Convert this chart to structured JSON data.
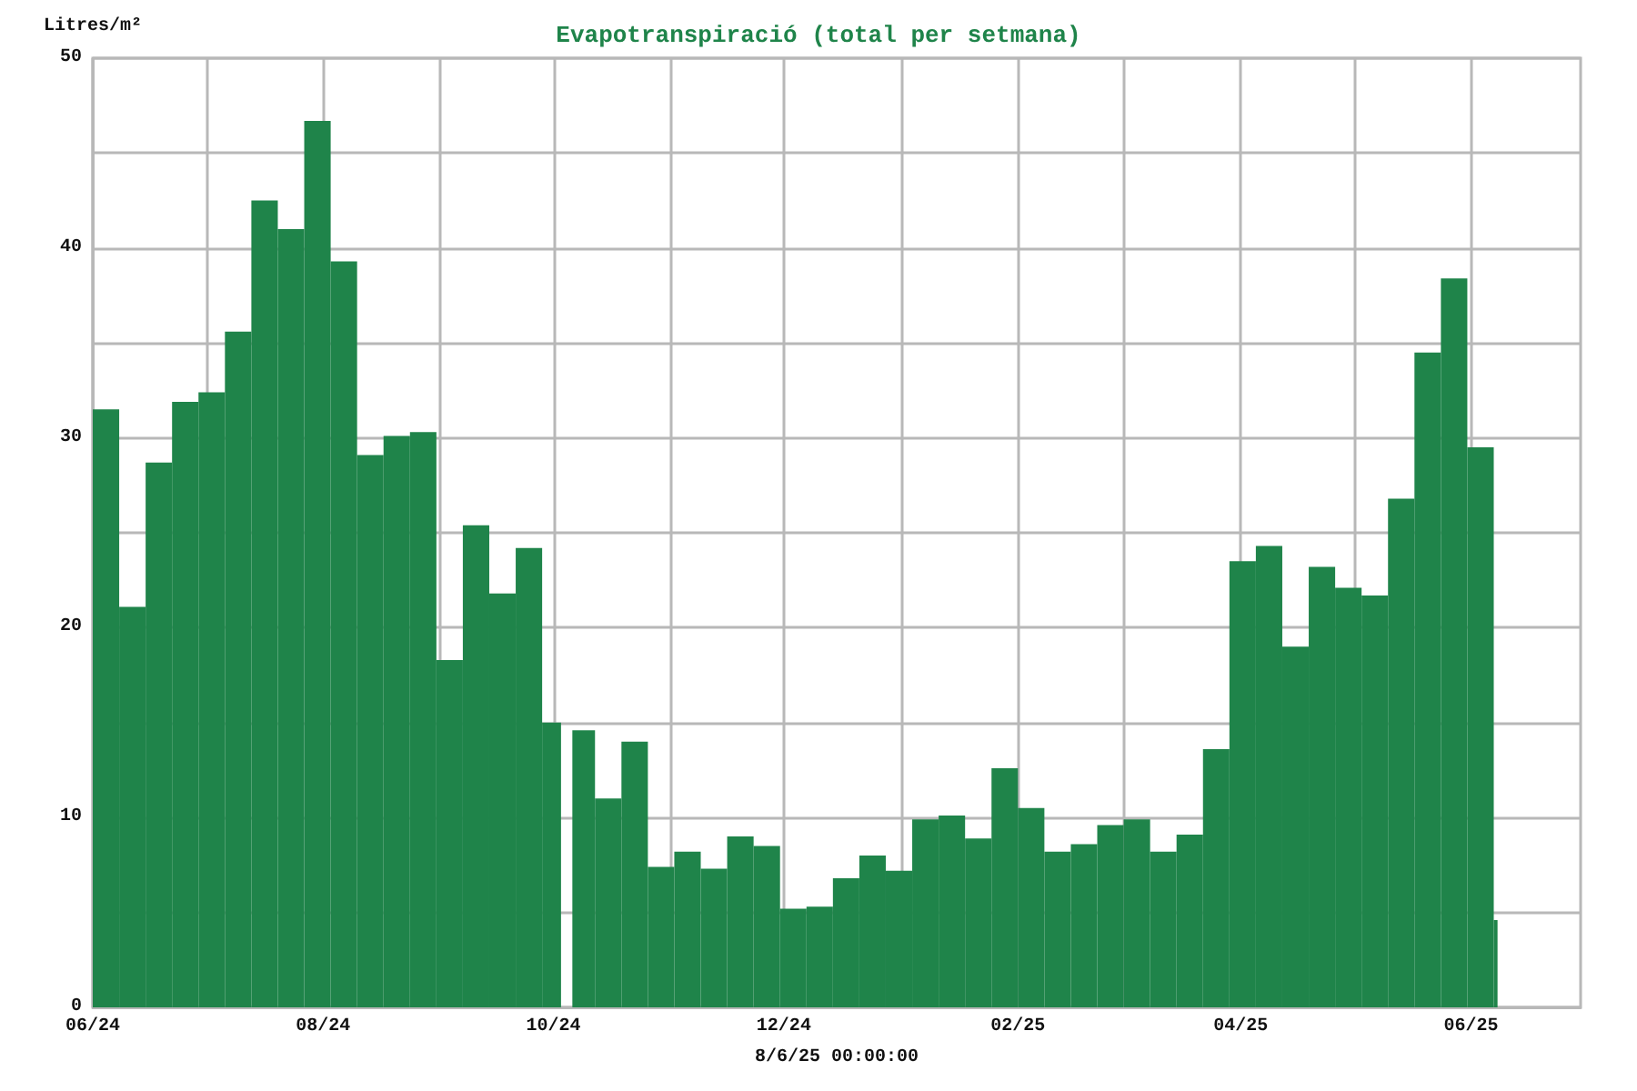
{
  "chart_data": {
    "type": "histogram",
    "title": "Evapotranspiració (total per setmana)",
    "ylabel": "Litres/m²",
    "xlabel": "8/6/25 00:00:00",
    "color": "#1f844a",
    "grid": true,
    "bins": [
      "2024-06-01",
      "2024-06-08",
      "2024-06-15",
      "2024-06-22",
      "2024-06-29",
      "2024-07-06",
      "2024-07-13",
      "2024-07-20",
      "2024-07-27",
      "2024-08-03",
      "2024-08-10",
      "2024-08-17",
      "2024-08-24",
      "2024-08-31",
      "2024-09-07",
      "2024-09-14",
      "2024-09-21",
      "2024-09-28",
      "2024-10-03",
      "2024-10-06",
      "2024-10-12",
      "2024-10-19",
      "2024-10-26",
      "2024-11-02",
      "2024-11-09",
      "2024-11-16",
      "2024-11-23",
      "2024-11-30",
      "2024-12-07",
      "2024-12-14",
      "2024-12-21",
      "2024-12-28",
      "2025-01-04",
      "2025-01-11",
      "2025-01-18",
      "2025-01-25",
      "2025-02-01",
      "2025-02-08",
      "2025-02-15",
      "2025-02-22",
      "2025-03-01",
      "2025-03-08",
      "2025-03-15",
      "2025-03-22",
      "2025-03-29",
      "2025-04-05",
      "2025-04-12",
      "2025-04-19",
      "2025-04-26",
      "2025-05-03",
      "2025-05-10",
      "2025-05-17",
      "2025-05-24",
      "2025-05-31",
      "2025-06-07",
      "2025-06-08"
    ],
    "values": [
      31.5,
      21.1,
      28.7,
      31.9,
      32.4,
      35.6,
      42.5,
      41.0,
      46.7,
      39.3,
      29.1,
      30.1,
      30.3,
      18.3,
      25.4,
      21.8,
      24.2,
      15.0,
      null,
      14.6,
      11.0,
      14.0,
      7.4,
      8.2,
      7.3,
      9.0,
      8.5,
      5.2,
      5.3,
      6.8,
      8.0,
      7.2,
      9.9,
      10.1,
      8.9,
      12.6,
      10.5,
      8.2,
      8.6,
      9.6,
      9.9,
      8.2,
      9.1,
      13.6,
      23.5,
      24.3,
      19.0,
      23.2,
      22.1,
      21.7,
      26.8,
      34.5,
      38.4,
      29.5,
      4.6
    ],
    "xlim": [
      "2024-06-01",
      "2025-06-30"
    ],
    "xticks": [
      {
        "value": "2024-06-01",
        "label": "06/24"
      },
      {
        "value": "2024-07-01",
        "label": null
      },
      {
        "value": "2024-08-01",
        "label": "08/24"
      },
      {
        "value": "2024-09-01",
        "label": null
      },
      {
        "value": "2024-10-01",
        "label": "10/24"
      },
      {
        "value": "2024-11-01",
        "label": null
      },
      {
        "value": "2024-12-01",
        "label": "12/24"
      },
      {
        "value": "2025-01-01",
        "label": null
      },
      {
        "value": "2025-02-01",
        "label": "02/25"
      },
      {
        "value": "2025-03-01",
        "label": null
      },
      {
        "value": "2025-04-01",
        "label": "04/25"
      },
      {
        "value": "2025-05-01",
        "label": null
      },
      {
        "value": "2025-06-01",
        "label": "06/25"
      }
    ],
    "ylim": [
      0,
      50
    ],
    "yticks": [
      0,
      {
        "value": 5,
        "label": null
      },
      10,
      {
        "value": 15,
        "label": null
      },
      20,
      {
        "value": 25,
        "label": null
      },
      30,
      {
        "value": 35,
        "label": null
      },
      40,
      {
        "value": 45,
        "label": null
      },
      50
    ]
  }
}
